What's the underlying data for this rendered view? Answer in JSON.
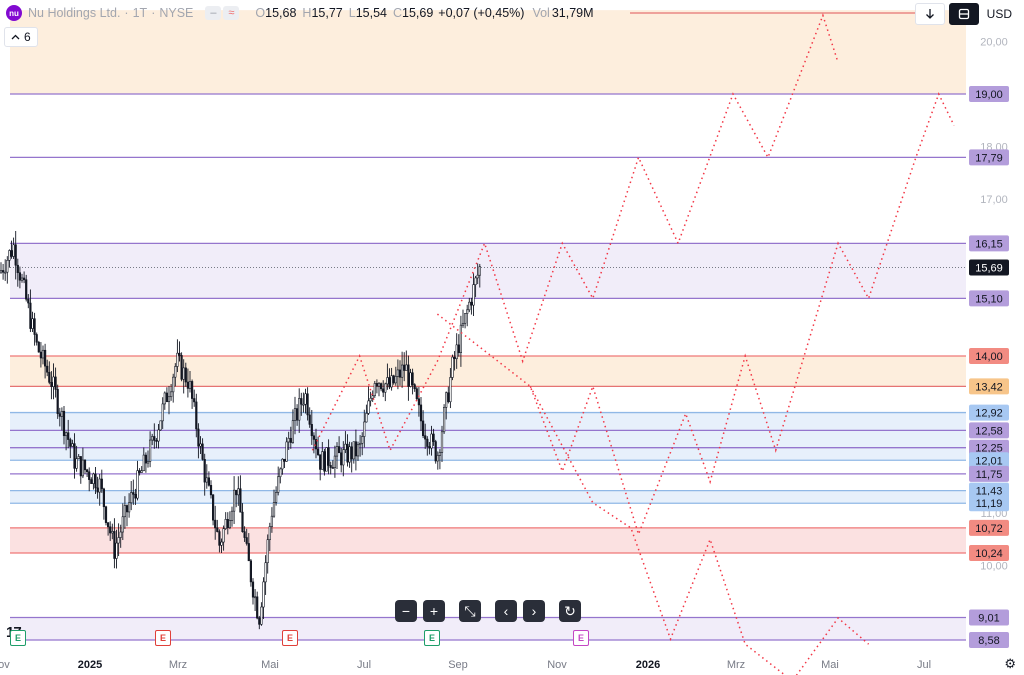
{
  "header": {
    "logo_text": "nu",
    "symbol": "Nu Holdings Ltd.",
    "interval": "1T",
    "exchange": "NYSE",
    "pill_1": "‒",
    "pill_2": "≈",
    "open_label": "O",
    "open": "15,68",
    "high_label": "H",
    "high": "15,77",
    "low_label": "L",
    "low": "15,54",
    "close_label": "C",
    "close": "15,69",
    "change": "+0,07 (+0,45%)",
    "vol_label": "Vol",
    "volume": "31,79M"
  },
  "interval_button": {
    "label": "6",
    "icon": "chevron-up-icon"
  },
  "top_right": {
    "download_icon": "arrow-down-icon",
    "layout_icon": "layout-icon",
    "currency": "USD"
  },
  "toolbar": {
    "zoom_out": "−",
    "zoom_in": "+",
    "reset_scale": "⤡",
    "scroll_left": "‹",
    "scroll_right": "›",
    "refresh": "↻"
  },
  "brand_logo": "17",
  "settings_icon": "gear-icon",
  "colors": {
    "purple": "#9575cd",
    "purple_fill": "#f1edf9",
    "orange_fill": "#fdeedd",
    "orange_line": "#e57373",
    "red_fill": "#fbe1e1",
    "red_line": "#ef7777",
    "blue_fill": "#e7f0fb",
    "blue_line": "#90b8e6",
    "candle": "#131722",
    "projection": "#f23645"
  },
  "chart_data": {
    "type": "candlestick",
    "symbol": "NU",
    "y_axis": {
      "ticks": [
        "10,00",
        "11,00",
        "17,00",
        "18,00",
        "20,00"
      ],
      "range": [
        8.3,
        20.7
      ]
    },
    "x_axis": {
      "labels": [
        "Nov",
        "2025",
        "Mrz",
        "Mai",
        "Jul",
        "Sep",
        "Nov",
        "2026",
        "Mrz",
        "Mai",
        "Jul"
      ],
      "bold_labels": [
        "2025",
        "2026"
      ]
    },
    "current_price": {
      "value": 15.69,
      "label": "15,69"
    },
    "price_levels": [
      {
        "value": 19.0,
        "label": "19,00",
        "color": "purple"
      },
      {
        "value": 17.79,
        "label": "17,79",
        "color": "purple"
      },
      {
        "value": 16.15,
        "label": "16,15",
        "color": "purple"
      },
      {
        "value": 15.1,
        "label": "15,10",
        "color": "purple"
      },
      {
        "value": 14.0,
        "label": "14,00",
        "color": "red"
      },
      {
        "value": 13.42,
        "label": "13,42",
        "color": "orange"
      },
      {
        "value": 12.92,
        "label": "12,92",
        "color": "blue"
      },
      {
        "value": 12.58,
        "label": "12,58",
        "color": "purple"
      },
      {
        "value": 12.25,
        "label": "12,25",
        "color": "purple"
      },
      {
        "value": 12.01,
        "label": "12,01",
        "color": "blue"
      },
      {
        "value": 11.75,
        "label": "11,75",
        "color": "purple"
      },
      {
        "value": 11.43,
        "label": "11,43",
        "color": "blue"
      },
      {
        "value": 11.19,
        "label": "11,19",
        "color": "blue"
      },
      {
        "value": 10.72,
        "label": "10,72",
        "color": "red"
      },
      {
        "value": 10.24,
        "label": "10,24",
        "color": "red"
      },
      {
        "value": 9.01,
        "label": "9,01",
        "color": "purple"
      },
      {
        "value": 8.58,
        "label": "8,58",
        "color": "purple"
      }
    ],
    "zones": [
      {
        "from": 19.0,
        "to": 20.6,
        "fill": "orange_fill"
      },
      {
        "from": 15.1,
        "to": 16.15,
        "fill": "purple_fill"
      },
      {
        "from": 13.42,
        "to": 14.0,
        "fill": "orange_fill"
      },
      {
        "from": 12.01,
        "to": 12.92,
        "fill": "blue_fill"
      },
      {
        "from": 11.19,
        "to": 11.43,
        "fill": "blue_fill"
      },
      {
        "from": 10.24,
        "to": 10.72,
        "fill": "red_fill"
      },
      {
        "from": 8.58,
        "to": 9.01,
        "fill": "purple_fill"
      }
    ],
    "earnings_markers": [
      {
        "letter": "E",
        "color": "#1e9e6a"
      },
      {
        "letter": "E",
        "color": "#e0403a"
      },
      {
        "letter": "E",
        "color": "#e0403a"
      },
      {
        "letter": "E",
        "color": "#1e9e6a"
      },
      {
        "letter": "E",
        "color": "#c447c4"
      }
    ],
    "close_path": [
      [
        "2024-11-01",
        15.6
      ],
      [
        "2024-11-10",
        16.1
      ],
      [
        "2024-11-25",
        14.2
      ],
      [
        "2024-12-05",
        13.5
      ],
      [
        "2024-12-20",
        12.0
      ],
      [
        "2025-01-05",
        11.6
      ],
      [
        "2025-01-15",
        10.3
      ],
      [
        "2025-01-25",
        11.2
      ],
      [
        "2025-02-10",
        12.4
      ],
      [
        "2025-02-25",
        13.9
      ],
      [
        "2025-03-05",
        13.5
      ],
      [
        "2025-03-15",
        11.8
      ],
      [
        "2025-03-25",
        10.4
      ],
      [
        "2025-04-05",
        11.5
      ],
      [
        "2025-04-12",
        10.2
      ],
      [
        "2025-04-20",
        9.0
      ],
      [
        "2025-04-28",
        11.0
      ],
      [
        "2025-05-10",
        12.5
      ],
      [
        "2025-05-20",
        13.3
      ],
      [
        "2025-05-30",
        12.0
      ],
      [
        "2025-06-15",
        12.1
      ],
      [
        "2025-06-25",
        12.2
      ],
      [
        "2025-07-05",
        13.6
      ],
      [
        "2025-07-15",
        13.4
      ],
      [
        "2025-07-25",
        13.8
      ],
      [
        "2025-08-05",
        12.7
      ],
      [
        "2025-08-15",
        12.1
      ],
      [
        "2025-08-25",
        13.8
      ],
      [
        "2025-09-05",
        15.0
      ],
      [
        "2025-09-12",
        15.69
      ]
    ],
    "projections": [
      [
        [
          "2025-05-25",
          12.2
        ],
        [
          "2025-06-25",
          14.0
        ],
        [
          "2025-07-15",
          12.2
        ],
        [
          "2025-08-15",
          13.9
        ],
        [
          "2025-09-15",
          16.15
        ],
        [
          "2025-10-10",
          13.9
        ],
        [
          "2025-11-05",
          16.15
        ],
        [
          "2025-11-25",
          15.1
        ],
        [
          "2025-12-25",
          17.79
        ],
        [
          "2026-01-20",
          16.15
        ],
        [
          "2026-02-25",
          19.0
        ],
        [
          "2026-03-20",
          17.79
        ],
        [
          "2026-04-25",
          20.5
        ],
        [
          "2026-05-05",
          19.6
        ]
      ],
      [
        [
          "2025-08-15",
          14.8
        ],
        [
          "2025-10-15",
          13.42
        ],
        [
          "2025-11-05",
          11.8
        ],
        [
          "2025-11-25",
          13.42
        ],
        [
          "2025-12-25",
          10.6
        ],
        [
          "2026-01-25",
          12.9
        ],
        [
          "2026-02-10",
          11.6
        ],
        [
          "2026-03-05",
          14.0
        ],
        [
          "2026-03-25",
          12.2
        ],
        [
          "2026-05-05",
          16.15
        ],
        [
          "2026-05-25",
          15.1
        ],
        [
          "2026-06-25",
          17.79
        ],
        [
          "2026-07-10",
          19.0
        ],
        [
          "2026-07-20",
          18.4
        ]
      ],
      [
        [
          "2025-10-15",
          13.42
        ],
        [
          "2025-11-25",
          11.2
        ],
        [
          "2025-12-20",
          10.72
        ],
        [
          "2026-01-15",
          8.6
        ],
        [
          "2026-02-10",
          10.5
        ],
        [
          "2026-03-05",
          8.5
        ],
        [
          "2026-04-05",
          7.8
        ],
        [
          "2026-05-05",
          9.0
        ],
        [
          "2026-05-25",
          8.5
        ]
      ]
    ]
  }
}
